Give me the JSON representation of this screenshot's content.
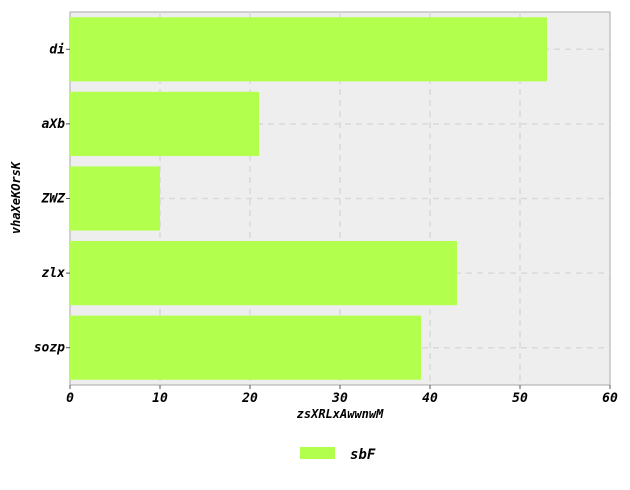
{
  "chart_data": {
    "type": "bar",
    "orientation": "horizontal",
    "title": "",
    "xlabel": "zsXRLxAwwnwM",
    "ylabel": "vhaXeKOrsK",
    "categories": [
      "di",
      "aXb",
      "ZWZ",
      "zlx",
      "sozp"
    ],
    "series": [
      {
        "name": "sbF",
        "values": [
          53,
          21,
          10,
          43,
          39
        ],
        "color": "#b3ff4d"
      }
    ],
    "xlim": [
      0,
      60
    ],
    "xticks": [
      0,
      10,
      20,
      30,
      40,
      50,
      60
    ],
    "grid": true,
    "legend_position": "bottom-center",
    "background_color": "#eeeeee",
    "grid_color": "#d9d9d9"
  }
}
